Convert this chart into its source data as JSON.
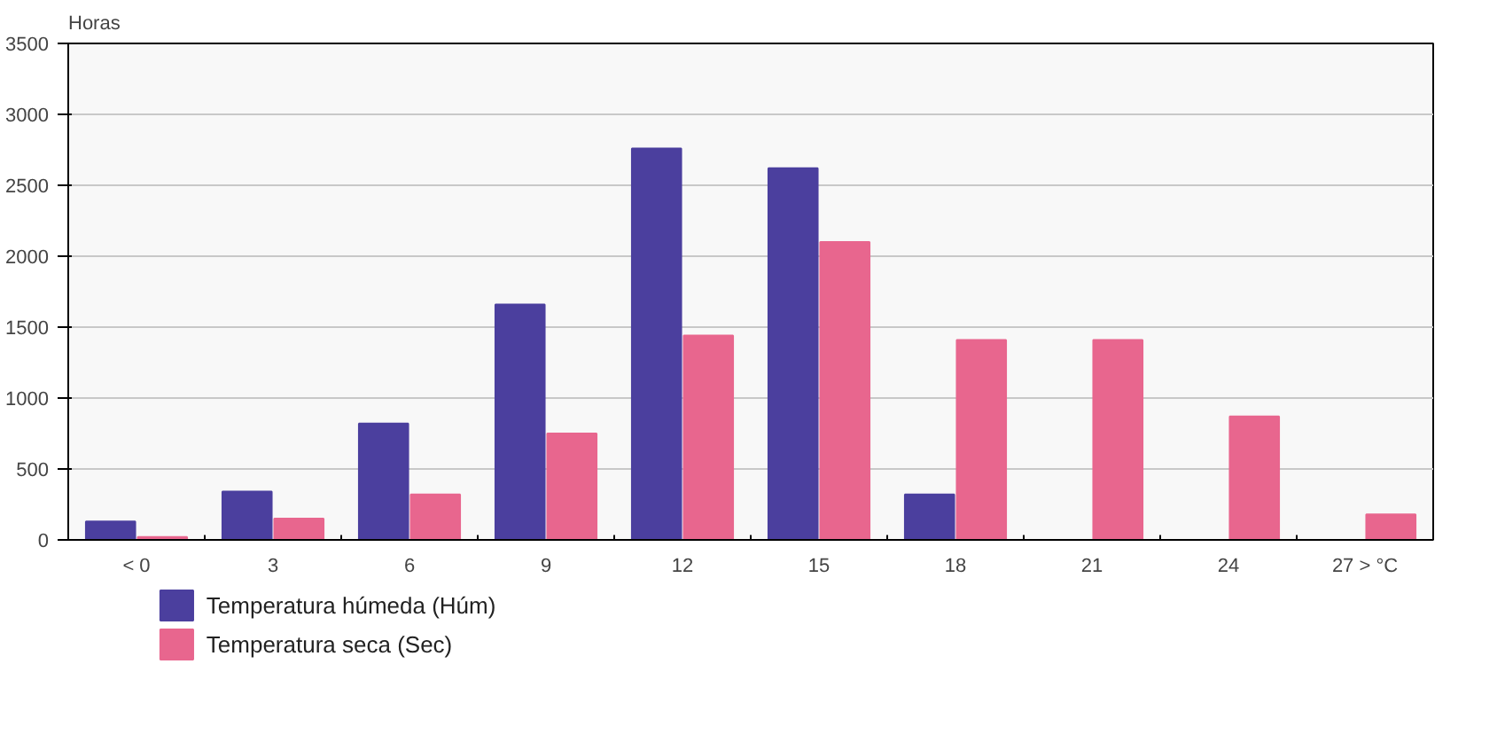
{
  "chart_data": {
    "type": "bar",
    "ylabel": "Horas",
    "categories": [
      "< 0",
      "3",
      "6",
      "9",
      "12",
      "15",
      "18",
      "21",
      "24",
      "27 > °C"
    ],
    "series": [
      {
        "name": "Temperatura húmeda (Húm)",
        "color": "#4b3f9e",
        "values": [
          130,
          340,
          820,
          1660,
          2760,
          2620,
          320,
          null,
          null,
          null
        ]
      },
      {
        "name": "Temperatura seca (Sec)",
        "color": "#e8668e",
        "values": [
          20,
          150,
          320,
          750,
          1440,
          2100,
          1410,
          1410,
          870,
          180
        ]
      }
    ],
    "ylim": [
      0,
      3500
    ],
    "yticks": [
      0,
      500,
      1000,
      1500,
      2000,
      2500,
      3000,
      3500
    ],
    "grid": "y",
    "legend": "bottom"
  }
}
